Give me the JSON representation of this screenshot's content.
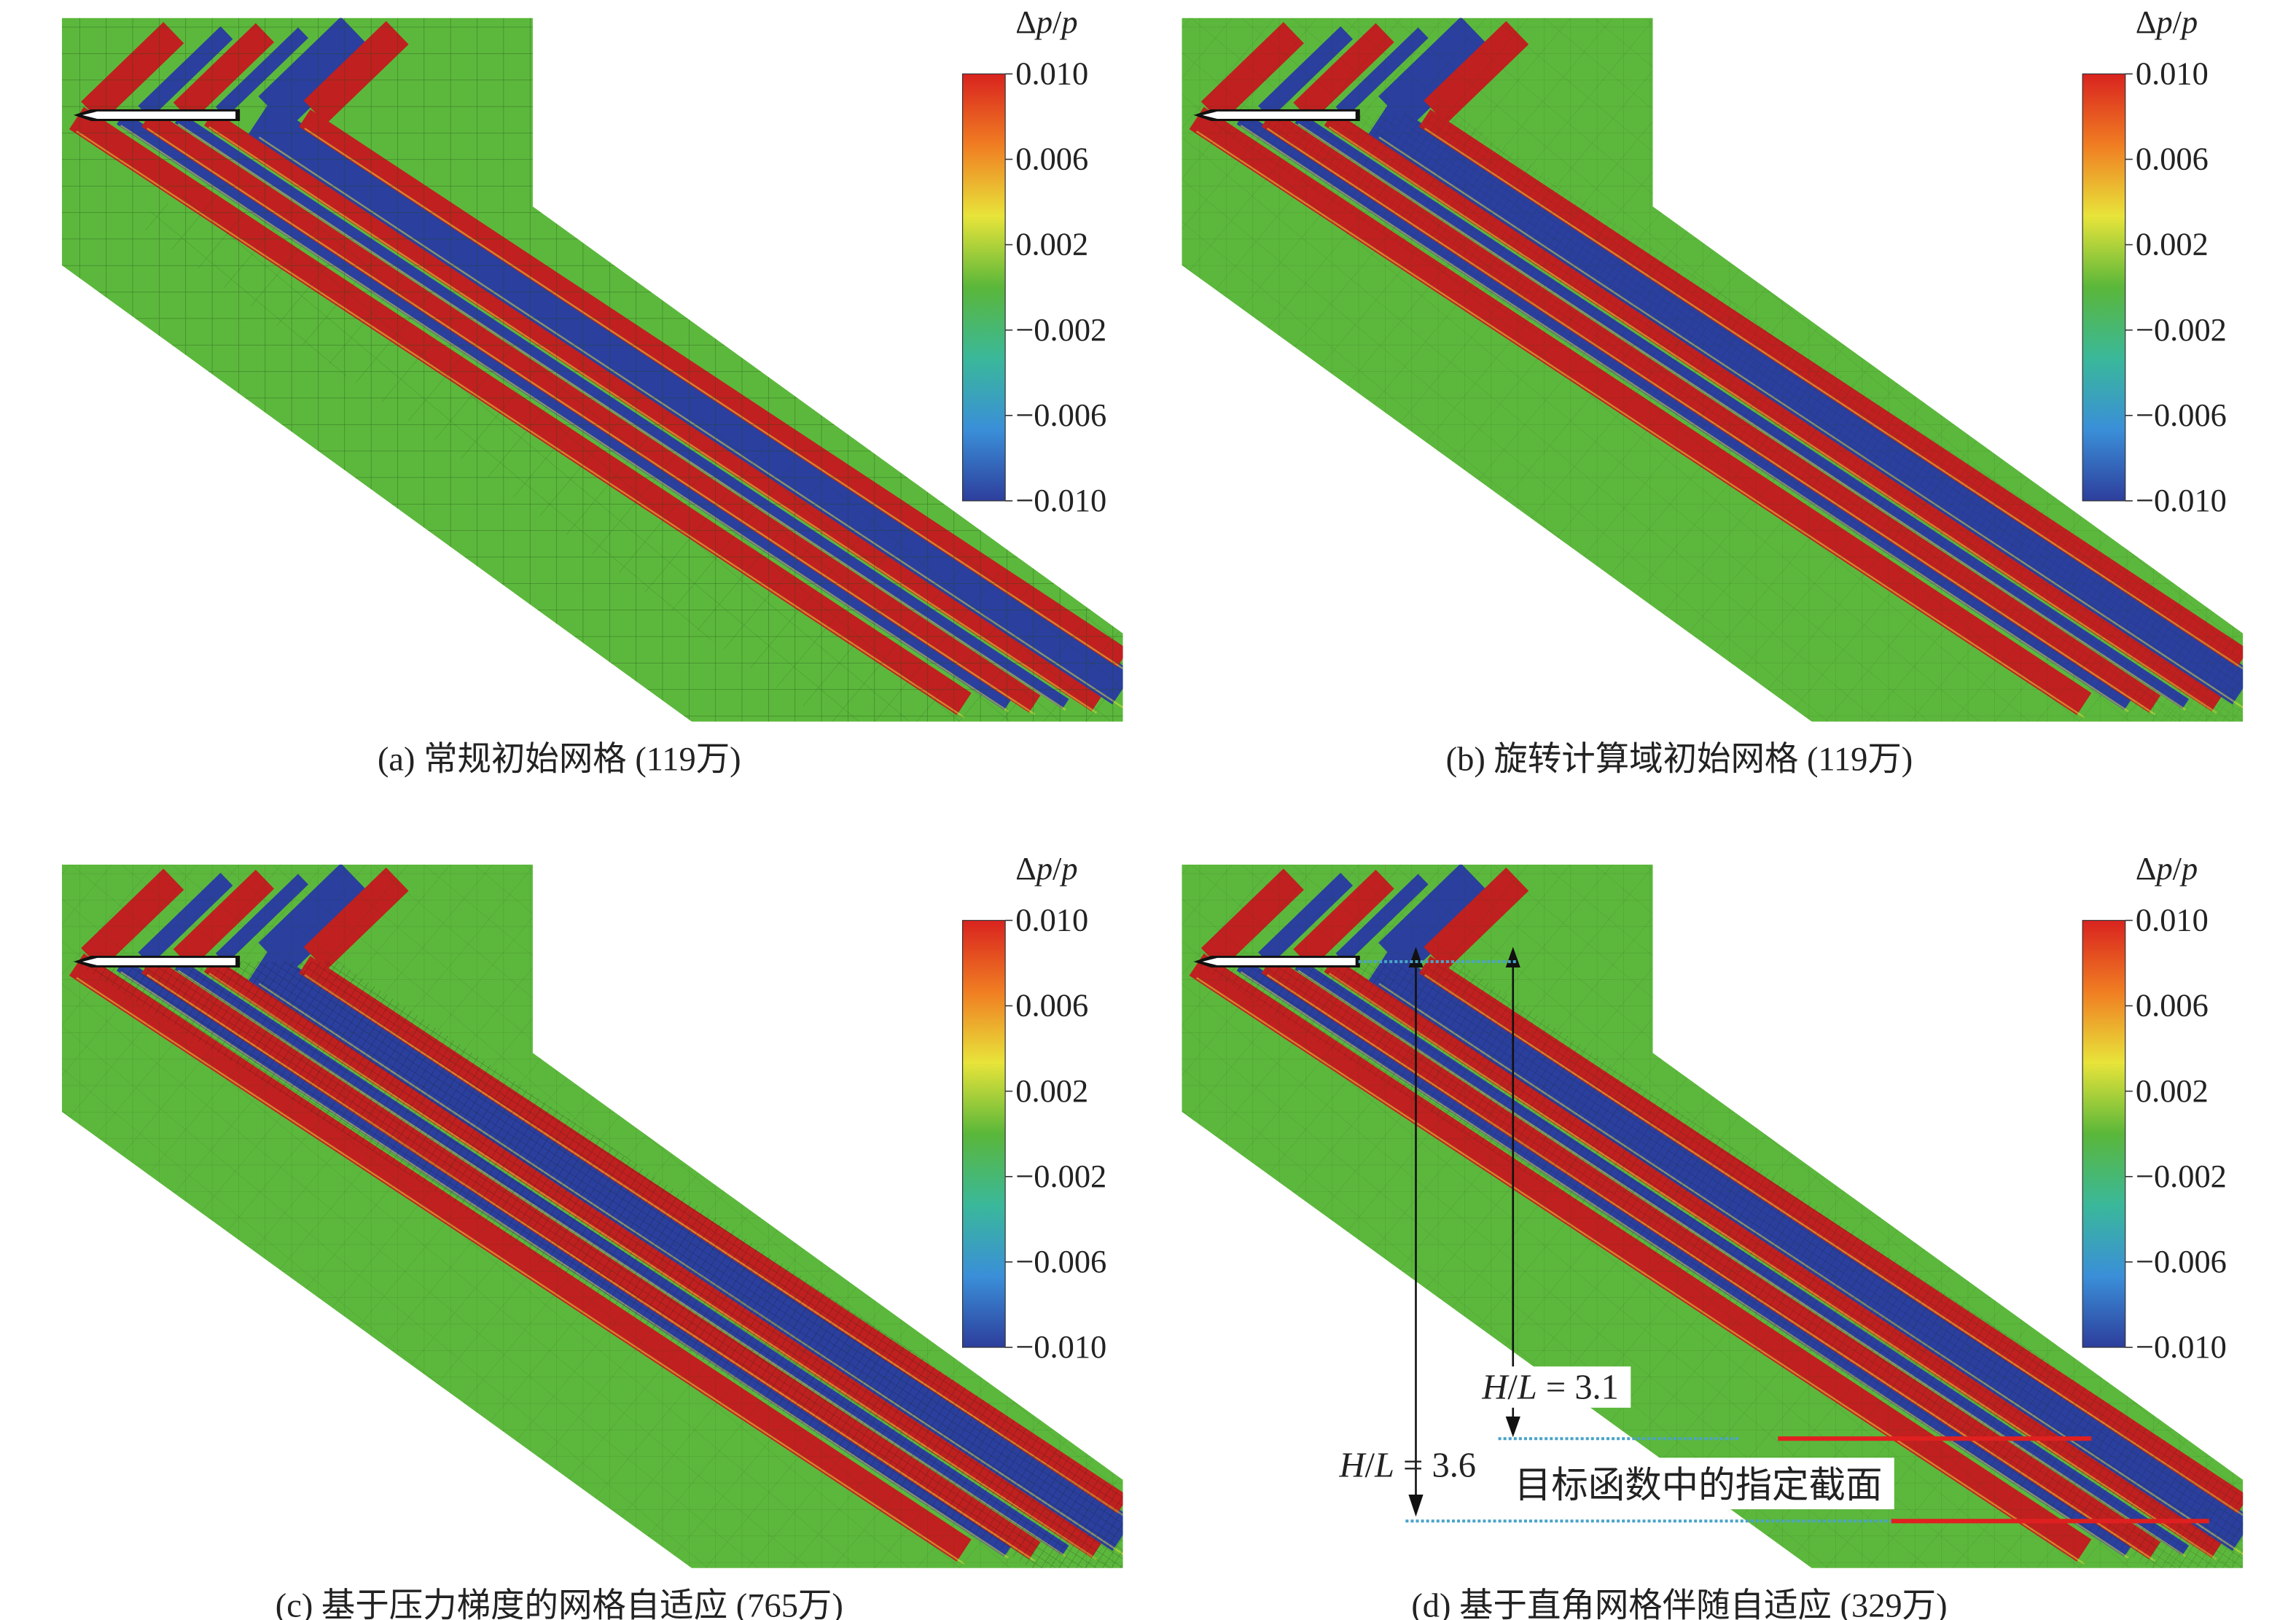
{
  "colorbar": {
    "title_delta": "Δ",
    "title_p1": "p",
    "title_slash": "/",
    "title_p2": "p",
    "ticks": [
      "0.010",
      "0.006",
      "0.002",
      "−0.002",
      "−0.006",
      "−0.010"
    ],
    "colors": [
      "#d9231f",
      "#f07d22",
      "#e8e43a",
      "#5ab73a",
      "#3ab89a",
      "#3a8fd8",
      "#2d3e9c"
    ]
  },
  "panels": [
    {
      "id": "a",
      "caption": "(a) 常规初始网格 (119万)"
    },
    {
      "id": "b",
      "caption": "(b) 旋转计算域初始网格 (119万)"
    },
    {
      "id": "c",
      "caption": "(c) 基于压力梯度的网格自适应 (765万)"
    },
    {
      "id": "d",
      "caption": "(d) 基于直角网格伴随自适应 (329万)"
    }
  ],
  "annotations": {
    "hl_31": {
      "H": "H",
      "slash": "/",
      "L": "L",
      "value": " = 3.1"
    },
    "hl_36": {
      "H": "H",
      "slash": "/",
      "L": "L",
      "value": " = 3.6"
    },
    "section_label": "目标函数中的指定截面"
  },
  "field_colors": {
    "background": "#5cb83c",
    "positive": "#c0201f",
    "negative": "#2a3f9e",
    "body": "#ffffff"
  }
}
